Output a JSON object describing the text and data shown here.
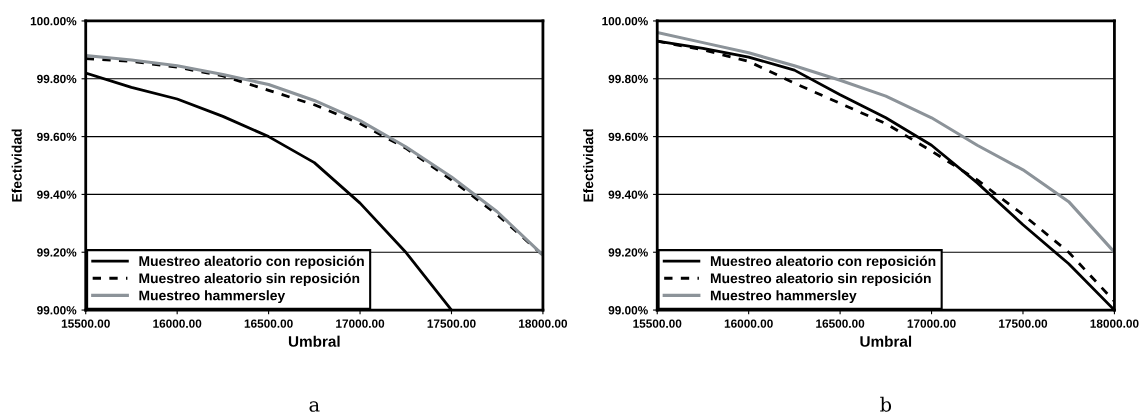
{
  "chart_data": [
    {
      "type": "line",
      "xlabel": "Umbral",
      "ylabel": "Efectividad",
      "annotations": [
        "a"
      ],
      "x": [
        15500,
        15750,
        16000,
        16250,
        16500,
        16750,
        17000,
        17250,
        17500,
        17750,
        18000
      ],
      "series": [
        {
          "name": "Muestreo aleatorio con reposición",
          "color": "#000000",
          "line_style": "solid",
          "x": [
            15500,
            15750,
            16000,
            16250,
            16500,
            16750,
            17000,
            17250,
            17500
          ],
          "values": [
            99.82,
            99.77,
            99.73,
            99.67,
            99.6,
            99.51,
            99.37,
            99.2,
            99.0
          ]
        },
        {
          "name": "Muestreo aleatorio sin reposición",
          "color": "#000000",
          "line_style": "dashed",
          "values": [
            99.87,
            99.86,
            99.84,
            99.81,
            99.76,
            99.71,
            99.645,
            99.56,
            99.45,
            99.33,
            99.19
          ]
        },
        {
          "name": "Muestreo hammersley",
          "color": "#8c9399",
          "line_style": "solid",
          "values": [
            99.88,
            99.865,
            99.845,
            99.815,
            99.78,
            99.725,
            99.655,
            99.565,
            99.46,
            99.34,
            99.19
          ]
        }
      ],
      "xlim": [
        15500,
        18000
      ],
      "ylim": [
        99.0,
        100.0
      ],
      "xticks": [
        {
          "value": 15500,
          "label": "15500.00"
        },
        {
          "value": 16000,
          "label": "16000.00"
        },
        {
          "value": 16500,
          "label": "16500.00"
        },
        {
          "value": 17000,
          "label": "17000.00"
        },
        {
          "value": 17500,
          "label": "17500.00"
        },
        {
          "value": 18000,
          "label": "18000.00"
        }
      ],
      "yticks": [
        {
          "value": 99.0,
          "label": "99.00%"
        },
        {
          "value": 99.2,
          "label": "99.20%"
        },
        {
          "value": 99.4,
          "label": "99.40%"
        },
        {
          "value": 99.6,
          "label": "99.60%"
        },
        {
          "value": 99.8,
          "label": "99.80%"
        },
        {
          "value": 100.0,
          "label": "100.00%"
        }
      ],
      "grid": "y",
      "legend": "bottom left",
      "marker": "none"
    },
    {
      "type": "line",
      "xlabel": "Umbral",
      "ylabel": "Efectividad",
      "annotations": [
        "b"
      ],
      "x": [
        15500,
        15750,
        16000,
        16250,
        16500,
        16750,
        17000,
        17250,
        17500,
        17750,
        18000
      ],
      "series": [
        {
          "name": "Muestreo aleatorio con reposición",
          "color": "#000000",
          "line_style": "solid",
          "values": [
            99.93,
            99.905,
            99.875,
            99.83,
            99.745,
            99.665,
            99.57,
            99.44,
            99.295,
            99.16,
            99.0
          ]
        },
        {
          "name": "Muestreo aleatorio sin reposición",
          "color": "#000000",
          "line_style": "dashed",
          "values": [
            99.93,
            99.9,
            99.86,
            99.785,
            99.715,
            99.645,
            99.55,
            99.45,
            99.33,
            99.2,
            99.03
          ]
        },
        {
          "name": "Muestreo hammersley",
          "color": "#8c9399",
          "line_style": "solid",
          "values": [
            99.96,
            99.925,
            99.89,
            99.845,
            99.795,
            99.74,
            99.665,
            99.57,
            99.485,
            99.375,
            99.2
          ]
        }
      ],
      "xlim": [
        15500,
        18000
      ],
      "ylim": [
        99.0,
        100.0
      ],
      "xticks": [
        {
          "value": 15500,
          "label": "15500.00"
        },
        {
          "value": 16000,
          "label": "16000.00"
        },
        {
          "value": 16500,
          "label": "16500.00"
        },
        {
          "value": 17000,
          "label": "17000.00"
        },
        {
          "value": 17500,
          "label": "17500.00"
        },
        {
          "value": 18000,
          "label": "18000.00"
        }
      ],
      "yticks": [
        {
          "value": 99.0,
          "label": "99.00%"
        },
        {
          "value": 99.2,
          "label": "99.20%"
        },
        {
          "value": 99.4,
          "label": "99.40%"
        },
        {
          "value": 99.6,
          "label": "99.60%"
        },
        {
          "value": 99.8,
          "label": "99.80%"
        },
        {
          "value": 100.0,
          "label": "100.00%"
        }
      ],
      "grid": "y",
      "legend": "bottom left",
      "marker": "none"
    }
  ]
}
